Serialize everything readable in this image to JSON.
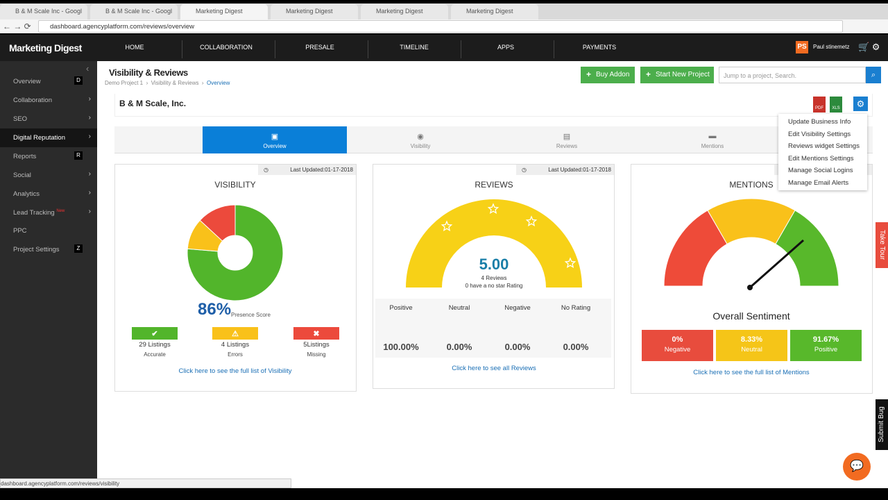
{
  "browser": {
    "tabs": [
      "B & M Scale Inc - Googl",
      "B & M Scale Inc - Googl",
      "Marketing Digest",
      "Marketing Digest",
      "Marketing Digest",
      "Marketing Digest"
    ],
    "url": "dashboard.agencyplatform.com/reviews/overview",
    "status_url": "dashboard.agencyplatform.com/reviews/visibility"
  },
  "nav": {
    "brand": "Marketing Digest",
    "items": [
      "HOME",
      "COLLABORATION",
      "PRESALE",
      "TIMELINE",
      "APPS",
      "PAYMENTS"
    ],
    "avatar": "PS",
    "user": "Paul stinemetz"
  },
  "sidebar": {
    "items": [
      {
        "label": "Overview",
        "badge": "D"
      },
      {
        "label": "Collaboration"
      },
      {
        "label": "SEO"
      },
      {
        "label": "Digital Reputation"
      },
      {
        "label": "Reports",
        "badge": "R"
      },
      {
        "label": "Social"
      },
      {
        "label": "Analytics"
      },
      {
        "label": "Lead Tracking",
        "tag": "New"
      },
      {
        "label": "PPC"
      },
      {
        "label": "Project Settings",
        "badge": "Z"
      }
    ]
  },
  "header": {
    "title": "Visibility & Reviews",
    "breadcrumb": [
      "Demo Project 1",
      "Visibility & Reviews",
      "Overview"
    ],
    "buttons": [
      "Buy Addon",
      "Start New Project"
    ],
    "search_placeholder": "Jump to a project, Search."
  },
  "business": {
    "name": "B & M Scale, Inc.",
    "exports": [
      "PDF",
      "XLS"
    ],
    "menu": [
      "Update Business Info",
      "Edit Visibility Settings",
      "Reviews widget Settings",
      "Edit Mentions Settings",
      "Manage Social Logins",
      "Manage Email Alerts"
    ]
  },
  "tabs": [
    "Overview",
    "Visibility",
    "Reviews",
    "Mentions"
  ],
  "visibility": {
    "updated": "Last Updated:01-17-2018",
    "title": "VISIBILITY",
    "score": "86%",
    "score_label": "Presence Score",
    "counts": [
      29,
      4,
      5
    ],
    "count_labels": [
      "29 Listings",
      "4 Listings",
      "5Listings"
    ],
    "statuses": [
      "Accurate",
      "Errors",
      "Missing"
    ],
    "colors": [
      "#52b52b",
      "#f9c11a",
      "#ec4a3c"
    ],
    "link": "Click here to see the full list of Visibility"
  },
  "reviews": {
    "updated": "Last Updated:01-17-2018",
    "title": "REVIEWS",
    "rating": "5.00",
    "count": "4 Reviews",
    "no_star": "0 have a no star Rating",
    "breakdown": [
      {
        "name": "Positive",
        "value": "100.00%"
      },
      {
        "name": "Neutral",
        "value": "0.00%"
      },
      {
        "name": "Negative",
        "value": "0.00%"
      },
      {
        "name": "No Rating",
        "value": "0.00%"
      }
    ],
    "link": "Click here to see all Reviews"
  },
  "mentions": {
    "title": "MENTIONS",
    "subtitle": "Overall Sentiment",
    "sentiment": [
      {
        "value": "0%",
        "name": "Negative"
      },
      {
        "value": "8.33%",
        "name": "Neutral"
      },
      {
        "value": "91.67%",
        "name": "Positive"
      }
    ],
    "link": "Click here to see the full list of Mentions"
  },
  "side_tabs": [
    "Take Tour",
    "Submit Bug"
  ]
}
